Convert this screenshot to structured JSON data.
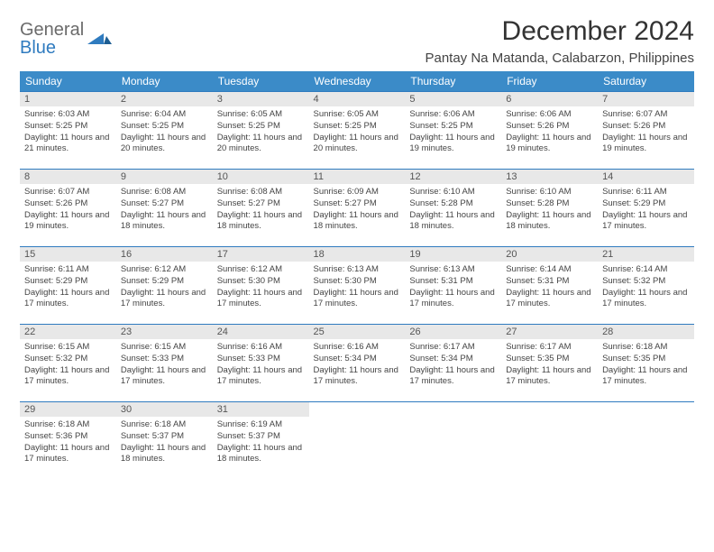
{
  "logo": {
    "line1": "General",
    "line2": "Blue"
  },
  "title": "December 2024",
  "location": "Pantay Na Matanda, Calabarzon, Philippines",
  "colors": {
    "header_bg": "#3b8bc8",
    "header_text": "#ffffff",
    "daynum_bg": "#e8e8e8",
    "border": "#2f7bbf",
    "logo_gray": "#6b6b6b",
    "logo_blue": "#2f7bbf"
  },
  "day_headers": [
    "Sunday",
    "Monday",
    "Tuesday",
    "Wednesday",
    "Thursday",
    "Friday",
    "Saturday"
  ],
  "weeks": [
    [
      {
        "n": "1",
        "sunrise": "6:03 AM",
        "sunset": "5:25 PM",
        "daylight": "11 hours and 21 minutes."
      },
      {
        "n": "2",
        "sunrise": "6:04 AM",
        "sunset": "5:25 PM",
        "daylight": "11 hours and 20 minutes."
      },
      {
        "n": "3",
        "sunrise": "6:05 AM",
        "sunset": "5:25 PM",
        "daylight": "11 hours and 20 minutes."
      },
      {
        "n": "4",
        "sunrise": "6:05 AM",
        "sunset": "5:25 PM",
        "daylight": "11 hours and 20 minutes."
      },
      {
        "n": "5",
        "sunrise": "6:06 AM",
        "sunset": "5:25 PM",
        "daylight": "11 hours and 19 minutes."
      },
      {
        "n": "6",
        "sunrise": "6:06 AM",
        "sunset": "5:26 PM",
        "daylight": "11 hours and 19 minutes."
      },
      {
        "n": "7",
        "sunrise": "6:07 AM",
        "sunset": "5:26 PM",
        "daylight": "11 hours and 19 minutes."
      }
    ],
    [
      {
        "n": "8",
        "sunrise": "6:07 AM",
        "sunset": "5:26 PM",
        "daylight": "11 hours and 19 minutes."
      },
      {
        "n": "9",
        "sunrise": "6:08 AM",
        "sunset": "5:27 PM",
        "daylight": "11 hours and 18 minutes."
      },
      {
        "n": "10",
        "sunrise": "6:08 AM",
        "sunset": "5:27 PM",
        "daylight": "11 hours and 18 minutes."
      },
      {
        "n": "11",
        "sunrise": "6:09 AM",
        "sunset": "5:27 PM",
        "daylight": "11 hours and 18 minutes."
      },
      {
        "n": "12",
        "sunrise": "6:10 AM",
        "sunset": "5:28 PM",
        "daylight": "11 hours and 18 minutes."
      },
      {
        "n": "13",
        "sunrise": "6:10 AM",
        "sunset": "5:28 PM",
        "daylight": "11 hours and 18 minutes."
      },
      {
        "n": "14",
        "sunrise": "6:11 AM",
        "sunset": "5:29 PM",
        "daylight": "11 hours and 17 minutes."
      }
    ],
    [
      {
        "n": "15",
        "sunrise": "6:11 AM",
        "sunset": "5:29 PM",
        "daylight": "11 hours and 17 minutes."
      },
      {
        "n": "16",
        "sunrise": "6:12 AM",
        "sunset": "5:29 PM",
        "daylight": "11 hours and 17 minutes."
      },
      {
        "n": "17",
        "sunrise": "6:12 AM",
        "sunset": "5:30 PM",
        "daylight": "11 hours and 17 minutes."
      },
      {
        "n": "18",
        "sunrise": "6:13 AM",
        "sunset": "5:30 PM",
        "daylight": "11 hours and 17 minutes."
      },
      {
        "n": "19",
        "sunrise": "6:13 AM",
        "sunset": "5:31 PM",
        "daylight": "11 hours and 17 minutes."
      },
      {
        "n": "20",
        "sunrise": "6:14 AM",
        "sunset": "5:31 PM",
        "daylight": "11 hours and 17 minutes."
      },
      {
        "n": "21",
        "sunrise": "6:14 AM",
        "sunset": "5:32 PM",
        "daylight": "11 hours and 17 minutes."
      }
    ],
    [
      {
        "n": "22",
        "sunrise": "6:15 AM",
        "sunset": "5:32 PM",
        "daylight": "11 hours and 17 minutes."
      },
      {
        "n": "23",
        "sunrise": "6:15 AM",
        "sunset": "5:33 PM",
        "daylight": "11 hours and 17 minutes."
      },
      {
        "n": "24",
        "sunrise": "6:16 AM",
        "sunset": "5:33 PM",
        "daylight": "11 hours and 17 minutes."
      },
      {
        "n": "25",
        "sunrise": "6:16 AM",
        "sunset": "5:34 PM",
        "daylight": "11 hours and 17 minutes."
      },
      {
        "n": "26",
        "sunrise": "6:17 AM",
        "sunset": "5:34 PM",
        "daylight": "11 hours and 17 minutes."
      },
      {
        "n": "27",
        "sunrise": "6:17 AM",
        "sunset": "5:35 PM",
        "daylight": "11 hours and 17 minutes."
      },
      {
        "n": "28",
        "sunrise": "6:18 AM",
        "sunset": "5:35 PM",
        "daylight": "11 hours and 17 minutes."
      }
    ],
    [
      {
        "n": "29",
        "sunrise": "6:18 AM",
        "sunset": "5:36 PM",
        "daylight": "11 hours and 17 minutes."
      },
      {
        "n": "30",
        "sunrise": "6:18 AM",
        "sunset": "5:37 PM",
        "daylight": "11 hours and 18 minutes."
      },
      {
        "n": "31",
        "sunrise": "6:19 AM",
        "sunset": "5:37 PM",
        "daylight": "11 hours and 18 minutes."
      },
      null,
      null,
      null,
      null
    ]
  ],
  "labels": {
    "sunrise": "Sunrise:",
    "sunset": "Sunset:",
    "daylight": "Daylight:"
  }
}
